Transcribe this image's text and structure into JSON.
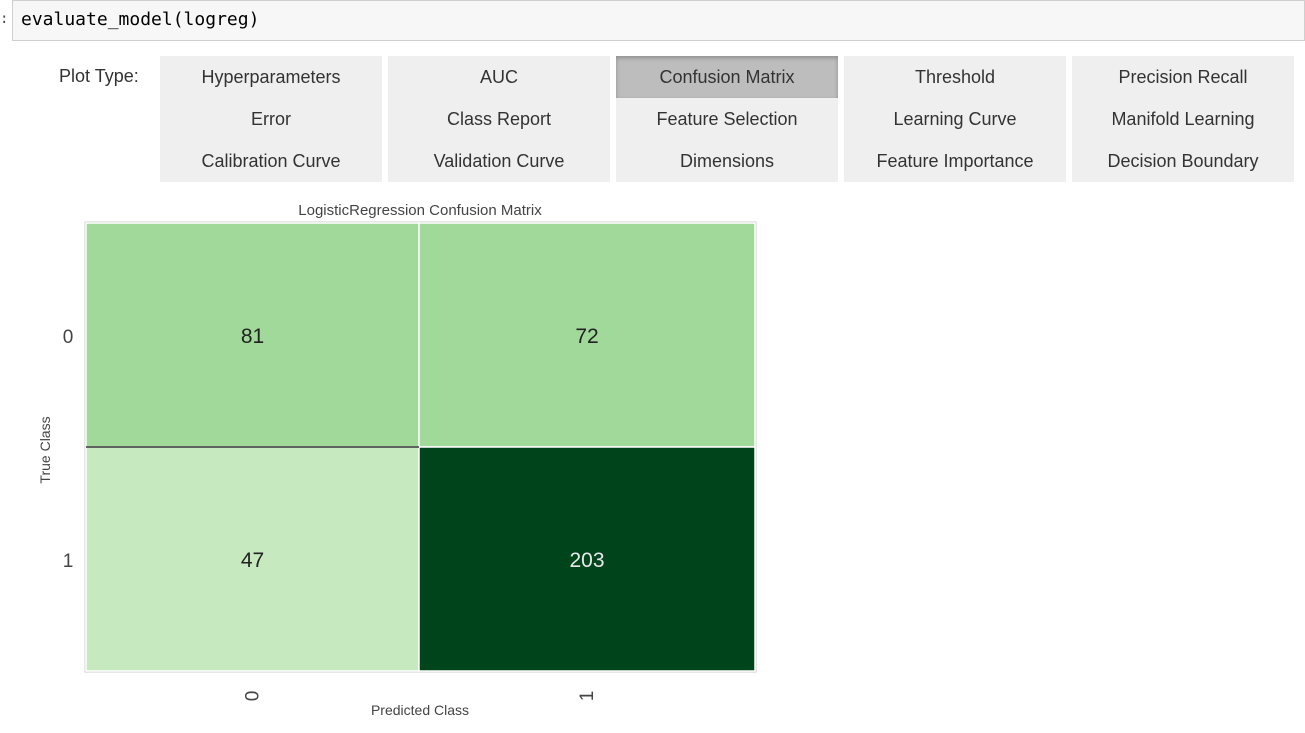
{
  "cell": {
    "prompt": ":",
    "code": "evaluate_model(logreg)"
  },
  "plot_selector": {
    "label": "Plot Type:",
    "active": "Confusion Matrix",
    "columns": [
      [
        "Hyperparameters",
        "Error",
        "Calibration Curve"
      ],
      [
        "AUC",
        "Class Report",
        "Validation Curve"
      ],
      [
        "Confusion Matrix",
        "Feature Selection",
        "Dimensions"
      ],
      [
        "Threshold",
        "Learning Curve",
        "Feature Importance"
      ],
      [
        "Precision Recall",
        "Manifold Learning",
        "Decision Boundary"
      ]
    ]
  },
  "chart_data": {
    "type": "heatmap",
    "title": "LogisticRegression Confusion Matrix",
    "xlabel": "Predicted Class",
    "ylabel": "True Class",
    "x_tick_labels": [
      "0",
      "1"
    ],
    "y_tick_labels": [
      "0",
      "1"
    ],
    "matrix": [
      [
        81,
        72
      ],
      [
        47,
        203
      ]
    ],
    "colormap": "Greens",
    "colors": {
      "cell_0_0": "#a1d99b",
      "cell_0_1": "#a1d99b",
      "cell_1_0": "#c7e9c0",
      "cell_1_1": "#00441b"
    },
    "grid": false
  }
}
